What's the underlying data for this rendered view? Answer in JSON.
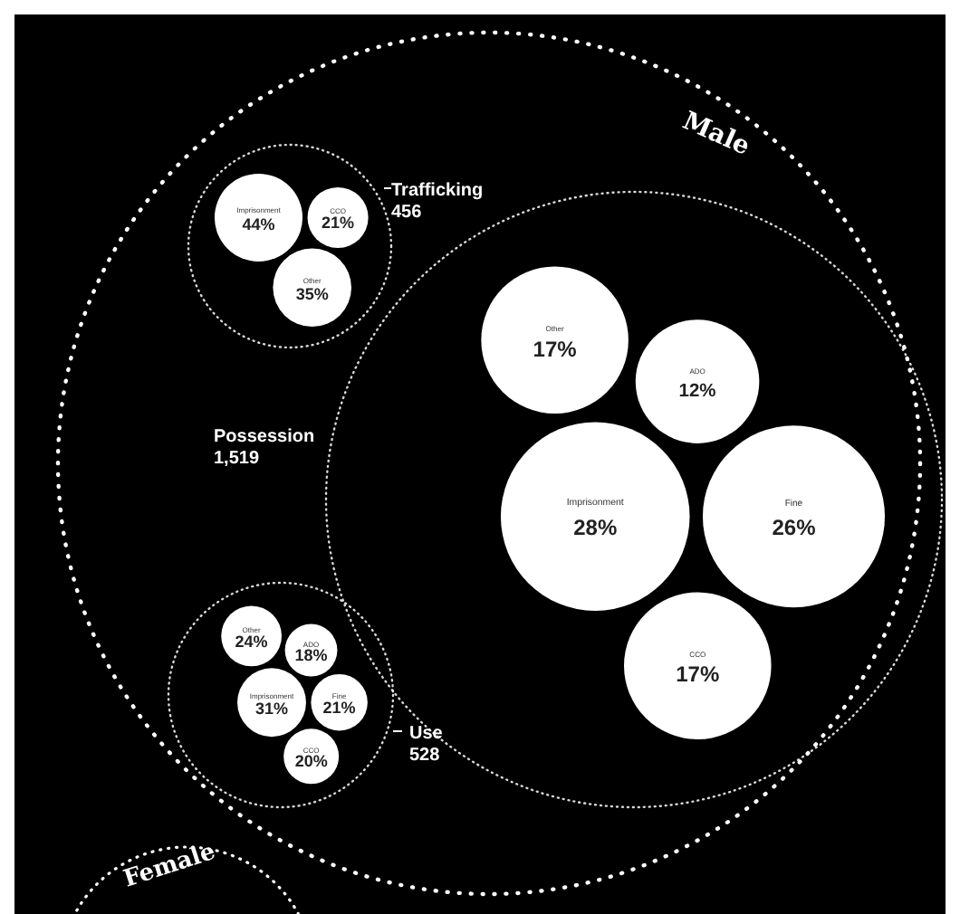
{
  "chart_data": {
    "type": "other",
    "categories": [
      "Imprisonment",
      "Fine",
      "CCO",
      "ADO",
      "Other"
    ],
    "series": [
      {
        "color": "#ffffff",
        "values": [
          44,
          null,
          21,
          null,
          35
        ],
        "value_labels": [
          "44%",
          null,
          "21%",
          null,
          "35%"
        ]
      },
      {
        "color": "#ffffff",
        "values": [
          28,
          26,
          17,
          12,
          17
        ],
        "value_labels": [
          "28%",
          "26%",
          "17%",
          "12%",
          "17%"
        ]
      },
      {
        "color": "#ffffff",
        "values": [
          31,
          21,
          20,
          18,
          24
        ],
        "value_labels": [
          "31%",
          "21%",
          "20%",
          "18%",
          "24%"
        ]
      }
    ],
    "annotations": [
      "Male",
      "Female",
      "Trafficking",
      "456",
      "Possession",
      "1,519",
      "Use",
      "528"
    ]
  }
}
